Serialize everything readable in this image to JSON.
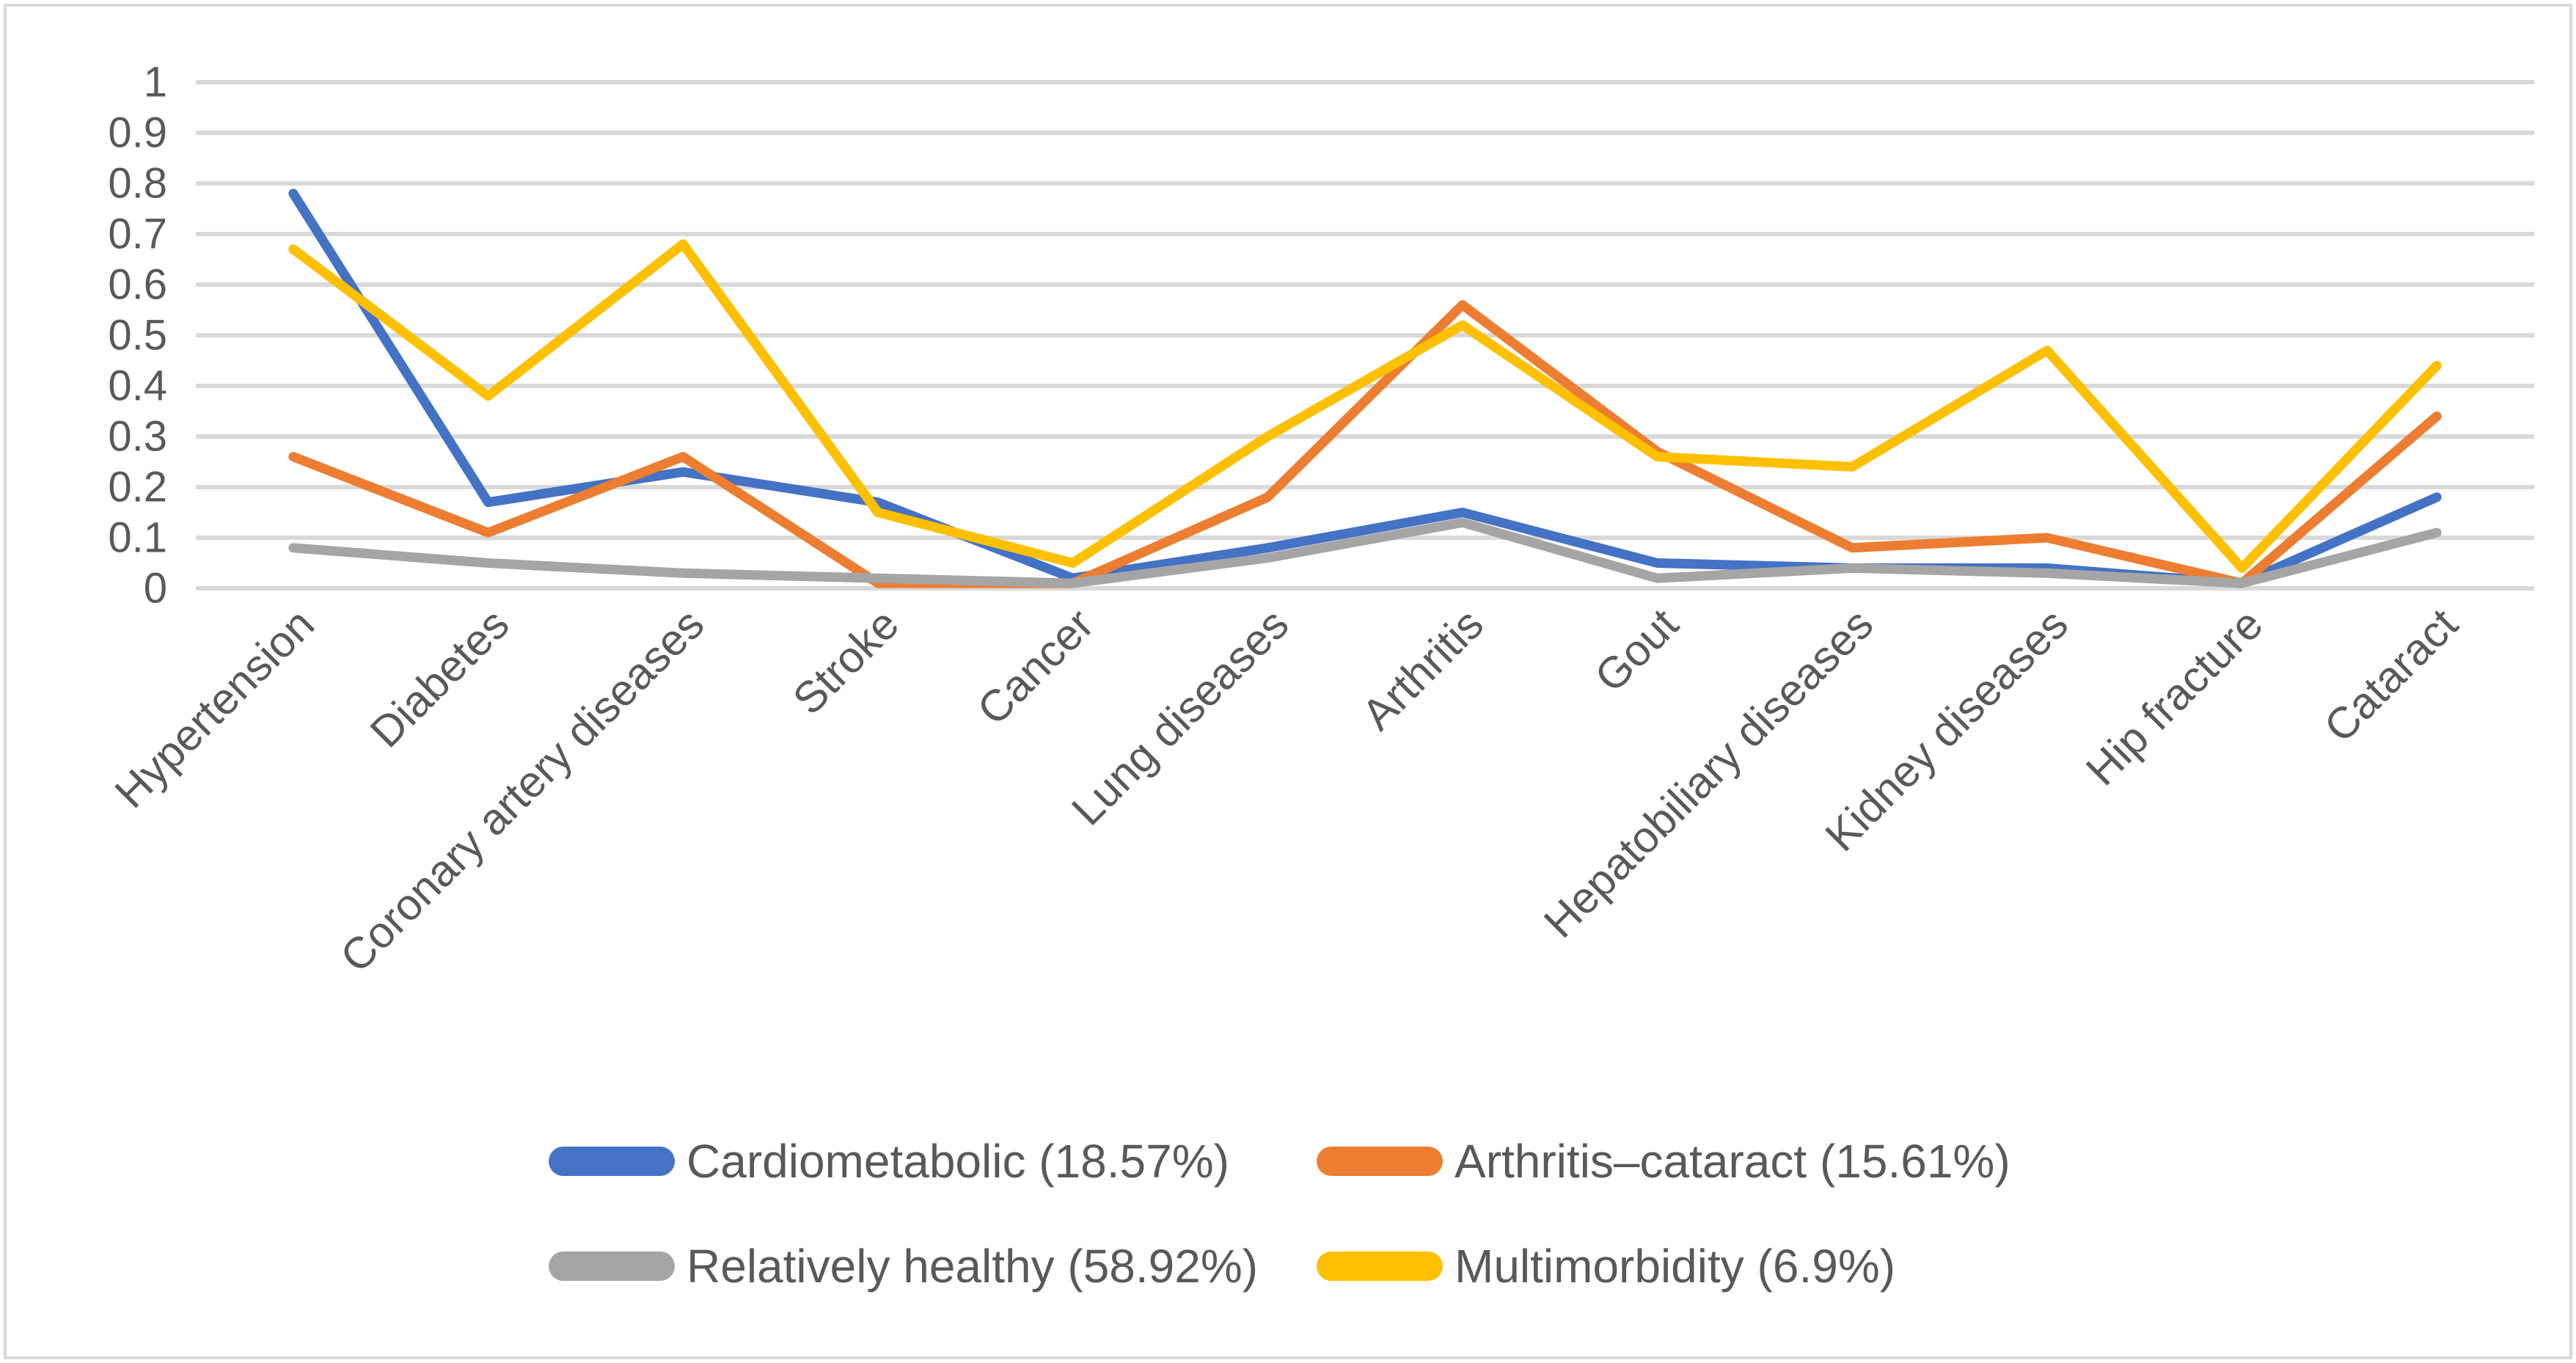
{
  "chart_data": {
    "type": "line",
    "title": "",
    "xlabel": "",
    "ylabel": "",
    "grid": true,
    "legend_position": "bottom",
    "ylim": [
      0,
      1
    ],
    "ytick_step": 0.1,
    "ytick_labels": [
      "1",
      "0.9",
      "0.8",
      "0.7",
      "0.6",
      "0.5",
      "0.4",
      "0.3",
      "0.2",
      "0.1",
      "0"
    ],
    "categories": [
      "Hypertension",
      "Diabetes",
      "Coronary artery diseases",
      "Stroke",
      "Cancer",
      "Lung diseases",
      "Arthritis",
      "Gout",
      "Hepatobiliary diseases",
      "Kidney diseases",
      "Hip fracture",
      "Cataract"
    ],
    "series": [
      {
        "name": "Cardiometabolic (18.57%)",
        "color": "#4472C4",
        "values": [
          0.78,
          0.17,
          0.23,
          0.17,
          0.02,
          0.08,
          0.15,
          0.05,
          0.04,
          0.04,
          0.01,
          0.18
        ]
      },
      {
        "name": "Arthritis–cataract (15.61%)",
        "color": "#ED7D31",
        "values": [
          0.26,
          0.11,
          0.26,
          0.01,
          0.01,
          0.18,
          0.56,
          0.27,
          0.08,
          0.1,
          0.01,
          0.34
        ]
      },
      {
        "name": "Relatively healthy (58.92%)",
        "color": "#A5A5A5",
        "values": [
          0.08,
          0.05,
          0.03,
          0.02,
          0.01,
          0.06,
          0.13,
          0.02,
          0.04,
          0.03,
          0.01,
          0.11
        ]
      },
      {
        "name": "Multimorbidity (6.9%)",
        "color": "#FFC000",
        "values": [
          0.67,
          0.38,
          0.68,
          0.15,
          0.05,
          0.3,
          0.52,
          0.26,
          0.24,
          0.47,
          0.04,
          0.44
        ]
      }
    ],
    "legend_rows": [
      [
        0,
        1
      ],
      [
        2,
        3
      ]
    ]
  },
  "styles": {
    "gridline_color": "#D9D9D9",
    "frame_color": "#D9D9D9",
    "axis_text_color": "#595959",
    "background_color": "#FFFFFF"
  }
}
